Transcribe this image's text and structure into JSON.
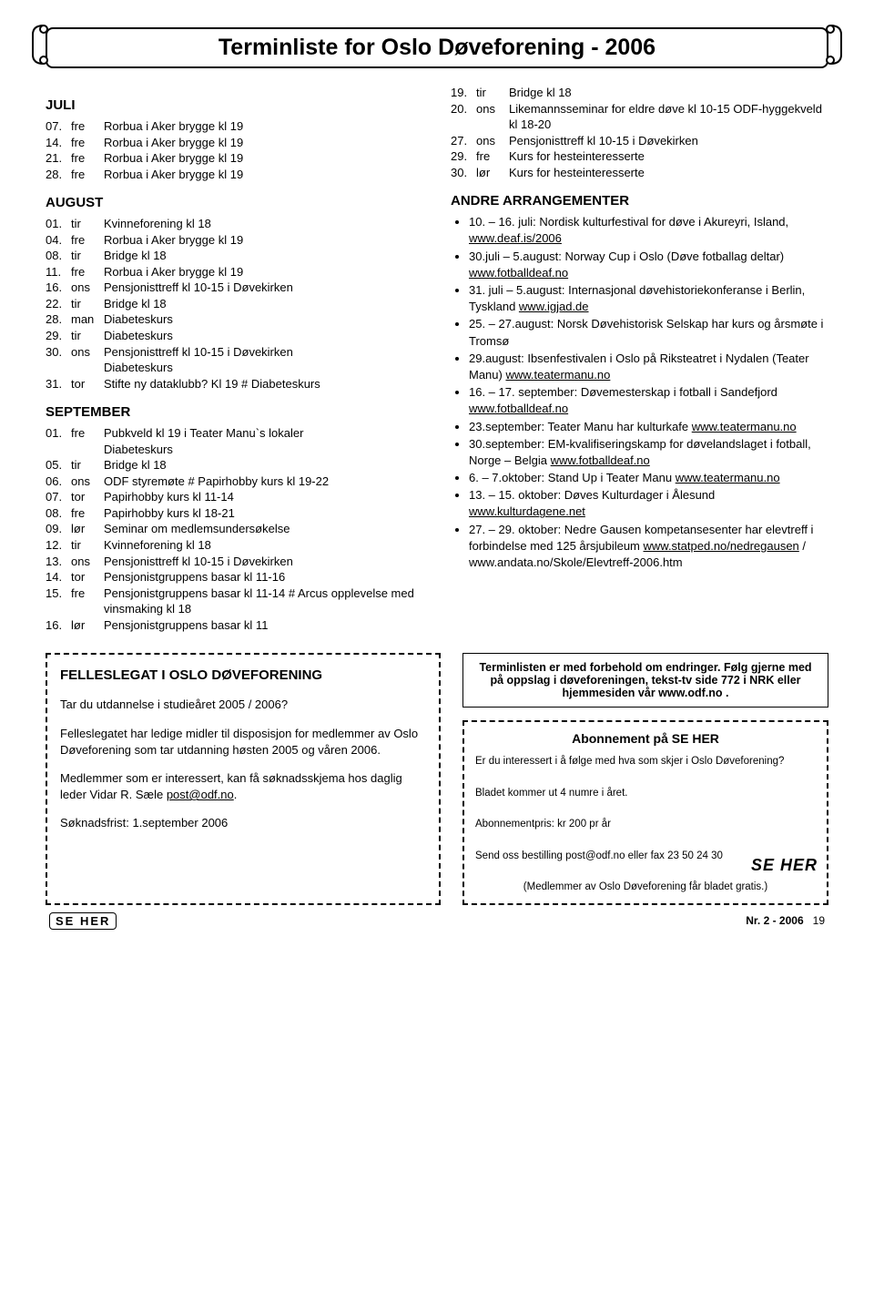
{
  "title": "Terminliste for Oslo Døveforening - 2006",
  "left": {
    "months": [
      {
        "name": "JULI",
        "items": [
          {
            "num": "07.",
            "day": "fre",
            "txt": "Rorbua i Aker brygge kl 19"
          },
          {
            "num": "14.",
            "day": "fre",
            "txt": "Rorbua i Aker brygge kl 19"
          },
          {
            "num": "21.",
            "day": "fre",
            "txt": "Rorbua i Aker brygge kl 19"
          },
          {
            "num": "28.",
            "day": "fre",
            "txt": "Rorbua i Aker brygge kl 19"
          }
        ]
      },
      {
        "name": "AUGUST",
        "items": [
          {
            "num": "01.",
            "day": "tir",
            "txt": "Kvinneforening kl 18"
          },
          {
            "num": "04.",
            "day": "fre",
            "txt": "Rorbua i Aker brygge kl 19"
          },
          {
            "num": "08.",
            "day": "tir",
            "txt": "Bridge kl 18"
          },
          {
            "num": "11.",
            "day": "fre",
            "txt": "Rorbua i Aker brygge kl 19"
          },
          {
            "num": "16.",
            "day": "ons",
            "txt": "Pensjonisttreff kl 10-15 i Døvekirken"
          },
          {
            "num": "22.",
            "day": "tir",
            "txt": "Bridge kl 18"
          },
          {
            "num": "28.",
            "day": "man",
            "txt": "Diabeteskurs"
          },
          {
            "num": "29.",
            "day": "tir",
            "txt": "Diabeteskurs"
          },
          {
            "num": "30.",
            "day": "ons",
            "txt": "Pensjonisttreff kl 10-15 i Døvekirken"
          },
          {
            "num": "",
            "day": "",
            "txt": "Diabeteskurs",
            "indent": true
          },
          {
            "num": "31.",
            "day": "tor",
            "txt": "Stifte ny dataklubb? Kl 19 # Diabeteskurs"
          }
        ]
      },
      {
        "name": "SEPTEMBER",
        "items": [
          {
            "num": "01.",
            "day": "fre",
            "txt": "Pubkveld kl 19 i Teater Manu`s lokaler"
          },
          {
            "num": "",
            "day": "",
            "txt": "Diabeteskurs",
            "indent": true
          },
          {
            "num": "05.",
            "day": "tir",
            "txt": "Bridge kl 18"
          },
          {
            "num": "06.",
            "day": "ons",
            "txt": "ODF styremøte # Papirhobby kurs kl 19-22"
          },
          {
            "num": "07.",
            "day": "tor",
            "txt": "Papirhobby kurs kl 11-14"
          },
          {
            "num": "08.",
            "day": "fre",
            "txt": "Papirhobby kurs kl 18-21"
          },
          {
            "num": "09.",
            "day": "lør",
            "txt": "Seminar om medlemsundersøkelse"
          },
          {
            "num": "12.",
            "day": "tir",
            "txt": "Kvinneforening kl 18"
          },
          {
            "num": "13.",
            "day": "ons",
            "txt": "Pensjonisttreff kl 10-15 i Døvekirken"
          },
          {
            "num": "14.",
            "day": "tor",
            "txt": "Pensjonistgruppens basar kl 11-16"
          },
          {
            "num": "15.",
            "day": "fre",
            "txt": "Pensjonistgruppens basar kl 11-14 # Arcus opplevelse med vinsmaking kl 18"
          },
          {
            "num": "16.",
            "day": "lør",
            "txt": "Pensjonistgruppens basar kl 11"
          }
        ]
      }
    ]
  },
  "right": {
    "cont": [
      {
        "num": "19.",
        "day": "tir",
        "txt": "Bridge kl 18"
      },
      {
        "num": "20.",
        "day": "ons",
        "txt": "Likemannsseminar for eldre døve kl 10-15 ODF-hyggekveld kl 18-20"
      },
      {
        "num": "27.",
        "day": "ons",
        "txt": "Pensjonisttreff kl 10-15 i Døvekirken"
      },
      {
        "num": "29.",
        "day": "fre",
        "txt": "Kurs for hesteinteresserte"
      },
      {
        "num": "30.",
        "day": "lør",
        "txt": "Kurs for hesteinteresserte"
      }
    ],
    "arr_title": "ANDRE ARRANGEMENTER",
    "arrangements": [
      {
        "pre": "10. – 16. juli: Nordisk kulturfestival for døve i Akureyri, Island, ",
        "link": "www.deaf.is/2006"
      },
      {
        "pre": "30.juli – 5.august: Norway Cup i Oslo (Døve fotballag deltar) ",
        "link": "www.fotballdeaf.no"
      },
      {
        "pre": "31. juli – 5.august: Internasjonal døvehistoriekonferanse i Berlin, Tyskland ",
        "link": "www.igjad.de"
      },
      {
        "pre": "25. – 27.august: Norsk Døvehistorisk Selskap har kurs og årsmøte i Tromsø",
        "link": ""
      },
      {
        "pre": "29.august: Ibsenfestivalen i Oslo på Riksteatret i Nydalen (Teater Manu) ",
        "link": "www.teatermanu.no"
      },
      {
        "pre": "16. – 17. september: Døvemesterskap i fotball i Sandefjord ",
        "link": "www.fotballdeaf.no"
      },
      {
        "pre": "23.september: Teater Manu har kulturkafe ",
        "link": "www.teatermanu.no"
      },
      {
        "pre": "30.september: EM-kvalifiseringskamp for døvelandslaget i fotball, Norge – Belgia ",
        "link": "www.fotballdeaf.no"
      },
      {
        "pre": "6. – 7.oktober: Stand Up i Teater Manu ",
        "link": "www.teatermanu.no"
      },
      {
        "pre": "13. – 15. oktober: Døves Kulturdager i Ålesund ",
        "link": "www.kulturdagene.net"
      },
      {
        "pre": "27. – 29. oktober: Nedre Gausen kompetansesenter har elevtreff i forbindelse med 125 årsjubileum ",
        "link": "www.statped.no/nedregausen",
        "post": " / www.andata.no/Skole/Elevtreff-2006.htm"
      }
    ]
  },
  "felles": {
    "title": "FELLESLEGAT I OSLO DØVEFORENING",
    "p1": "Tar du utdannelse i studieåret 2005 / 2006?",
    "p2": "Felleslegatet har ledige midler til disposisjon for medlemmer av Oslo Døveforening som tar utdanning høsten 2005 og våren 2006.",
    "p3a": "Medlemmer som er interessert, kan få søknadsskjema hos daglig leder Vidar R. Sæle ",
    "p3link": "post@odf.no",
    "p3b": ".",
    "p4": "Søknadsfrist: 1.september 2006"
  },
  "note": "Terminlisten er med forbehold om endringer. Følg gjerne med på oppslag i døveforeningen, tekst-tv side 772 i NRK eller hjemmesiden vår www.odf.no .",
  "abon": {
    "title": "Abonnement på SE HER",
    "l1": "Er du interessert i å følge med hva som skjer i Oslo Døveforening?",
    "l2": "Bladet kommer ut 4 numre i året.",
    "l3": "Abonnementpris: kr 200 pr år",
    "l4": "Send oss bestilling post@odf.no eller fax 23 50 24 30",
    "l5": "(Medlemmer av Oslo Døveforening får bladet gratis.)",
    "logo": "SE HER"
  },
  "footer": {
    "mag": "SE HER",
    "issue": "Nr. 2 - 2006",
    "page": "19"
  }
}
